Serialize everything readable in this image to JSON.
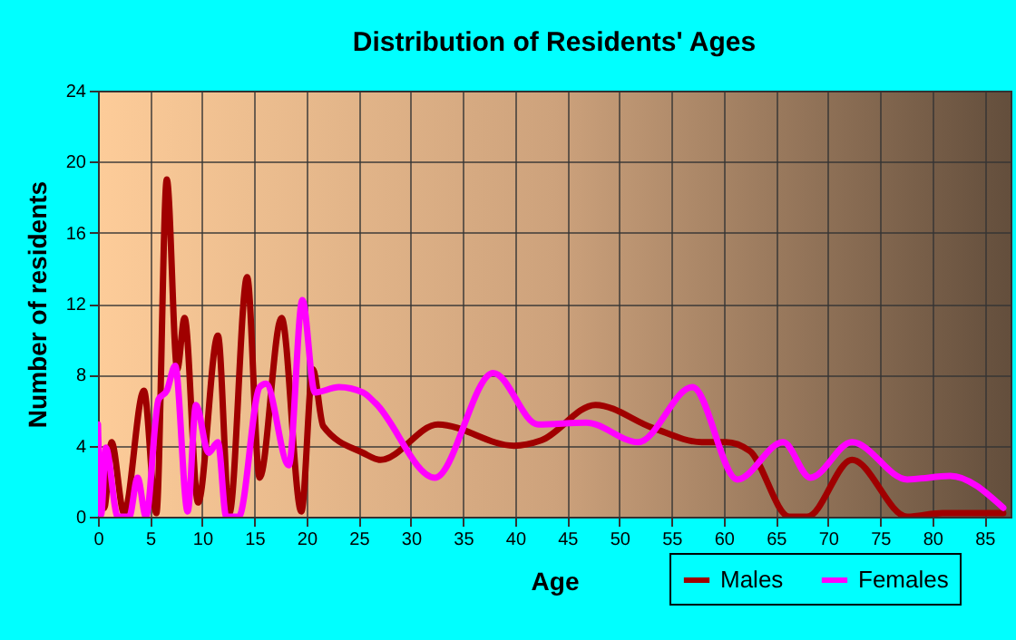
{
  "chart_data": {
    "type": "line",
    "title": "Distribution of Residents' Ages",
    "xlabel": "Age",
    "ylabel": "Number of residents",
    "xlim": [
      0,
      87.5
    ],
    "xticks": [
      0,
      5,
      10,
      15,
      20,
      25,
      30,
      35,
      40,
      45,
      50,
      55,
      60,
      65,
      70,
      75,
      80,
      85
    ],
    "ylim": [
      0,
      24
    ],
    "yticks": [
      0,
      4,
      8,
      12,
      16,
      20,
      24
    ],
    "grid": true,
    "legend": "bottom right",
    "line_style": "solid",
    "series": [
      {
        "name": "Males",
        "color": "#a00000",
        "x": [
          0.2,
          0.6,
          1.3,
          2.5,
          4.4,
          5.6,
          6.6,
          7.6,
          8.3,
          9.6,
          11.5,
          12.6,
          14.3,
          15.5,
          17.6,
          19.5,
          20.6,
          21.6,
          25.4,
          27.1,
          32.6,
          39.9,
          42.5,
          47.7,
          53.2,
          57.9,
          60.2,
          62.5,
          66.3,
          68,
          72.3,
          77.6,
          81,
          86.8
        ],
        "values": [
          2.9,
          0.5,
          4.2,
          0.2,
          7.1,
          0.2,
          19,
          8.3,
          11.2,
          0.8,
          10.2,
          0.2,
          13.5,
          2.2,
          11.2,
          0.3,
          8.3,
          5.1,
          3.6,
          3.2,
          5.2,
          4,
          4.3,
          6.3,
          5,
          4.2,
          4.2,
          3.7,
          0,
          0,
          3.2,
          0,
          0.2,
          0.2
        ]
      },
      {
        "name": "Females",
        "color": "#ff00ff",
        "x": [
          0,
          0.3,
          0.75,
          1.9,
          3,
          3.8,
          4.6,
          5.8,
          6.6,
          7.4,
          8.6,
          9.4,
          10.6,
          11.5,
          12.3,
          13.5,
          15.5,
          16.1,
          18.3,
          19.6,
          20.8,
          23.1,
          25.4,
          26.6,
          32.3,
          37.9,
          42.2,
          46.8,
          51.8,
          57,
          61.3,
          65.7,
          68.3,
          72.3,
          77.6,
          81.7,
          86.8
        ],
        "values": [
          5.2,
          0.1,
          3.9,
          0,
          0,
          2.2,
          0,
          6.6,
          7.1,
          8.5,
          0.3,
          6.3,
          3.6,
          4.2,
          0,
          0,
          7.3,
          7.5,
          2.9,
          12.2,
          7,
          7.3,
          7,
          6.4,
          2.2,
          8.1,
          5.2,
          5.3,
          4.2,
          7.3,
          2.1,
          4.2,
          2.2,
          4.2,
          2.1,
          2.3,
          0.5
        ]
      }
    ]
  }
}
